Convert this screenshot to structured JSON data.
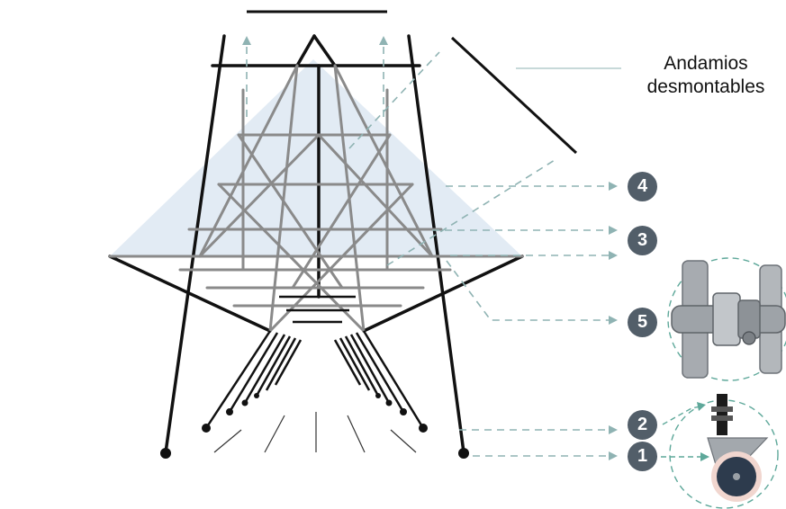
{
  "title": {
    "line1": "Andamios",
    "line2": "desmontables"
  },
  "callouts": [
    {
      "number": "4"
    },
    {
      "number": "3"
    },
    {
      "number": "5"
    },
    {
      "number": "2"
    },
    {
      "number": "1"
    }
  ],
  "colors": {
    "frame": "#111111",
    "tube": "#8a8a8a",
    "plane": "#dde8f2",
    "arrow": "#8fb3b3",
    "badge": "#525e69",
    "wheel": "#2d3b4d",
    "wheel_ring": "#f1d6cf"
  }
}
